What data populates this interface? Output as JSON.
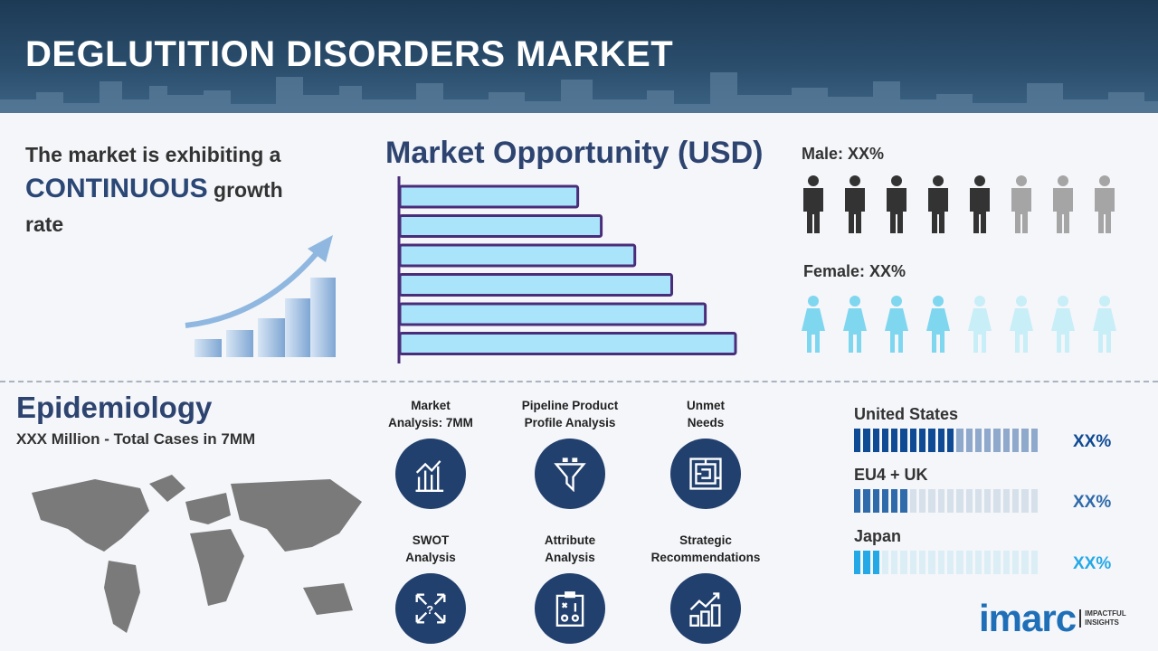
{
  "header": {
    "title": "DEGLUTITION DISORDERS MARKET"
  },
  "growth": {
    "line1": "The market is exhibiting a",
    "highlight": "CONTINUOUS",
    "line2": " growth",
    "line3": "rate"
  },
  "chart_data": {
    "type": "bar",
    "orientation": "horizontal",
    "title": "Market Opportunity (USD)",
    "categories": [
      "",
      "",
      "",
      "",
      "",
      ""
    ],
    "values": [
      53,
      60,
      70,
      81,
      91,
      100
    ],
    "bar_color": "#a9e4fb",
    "border_color": "#4a2d7a",
    "axis_labels": false
  },
  "gender": {
    "male_label": "Male: XX%",
    "female_label": "Female: XX%",
    "male_filled": 5,
    "male_total": 8,
    "female_filled": 4,
    "female_total": 8,
    "male_color": "#333333",
    "male_empty": "#a5a5a5",
    "female_color": "#7fd6ef",
    "female_empty": "#c8eef8"
  },
  "epidemiology": {
    "title": "Epidemiology",
    "subtitle": "XXX Million - Total Cases in 7MM"
  },
  "services": [
    {
      "line1": "Market",
      "line2": "Analysis: 7MM",
      "icon": "chart-growth-icon"
    },
    {
      "line1": "Pipeline Product",
      "line2": "Profile Analysis",
      "icon": "funnel-icon"
    },
    {
      "line1": "Unmet",
      "line2": "Needs",
      "icon": "maze-icon"
    },
    {
      "line1": "SWOT",
      "line2": "Analysis",
      "icon": "swot-arrows-icon"
    },
    {
      "line1": "Attribute",
      "line2": "Analysis",
      "icon": "clipboard-strategy-icon"
    },
    {
      "line1": "Strategic",
      "line2": "Recommendations",
      "icon": "bar-chart-arrow-icon"
    }
  ],
  "regions": [
    {
      "name": "United States",
      "value": "XX%",
      "filled": 11,
      "total": 20,
      "color": "#0f4a94",
      "empty": "#8fa9cc"
    },
    {
      "name": "EU4 + UK",
      "value": "XX%",
      "filled": 6,
      "total": 20,
      "color": "#2f6aab",
      "empty": "#d6e0ea"
    },
    {
      "name": "Japan",
      "value": "XX%",
      "filled": 3,
      "total": 20,
      "color": "#25a9e6",
      "empty": "#dbeef6"
    }
  ],
  "logo": {
    "brand": "imarc",
    "tagline1": "IMPACTFUL",
    "tagline2": "INSIGHTS"
  }
}
